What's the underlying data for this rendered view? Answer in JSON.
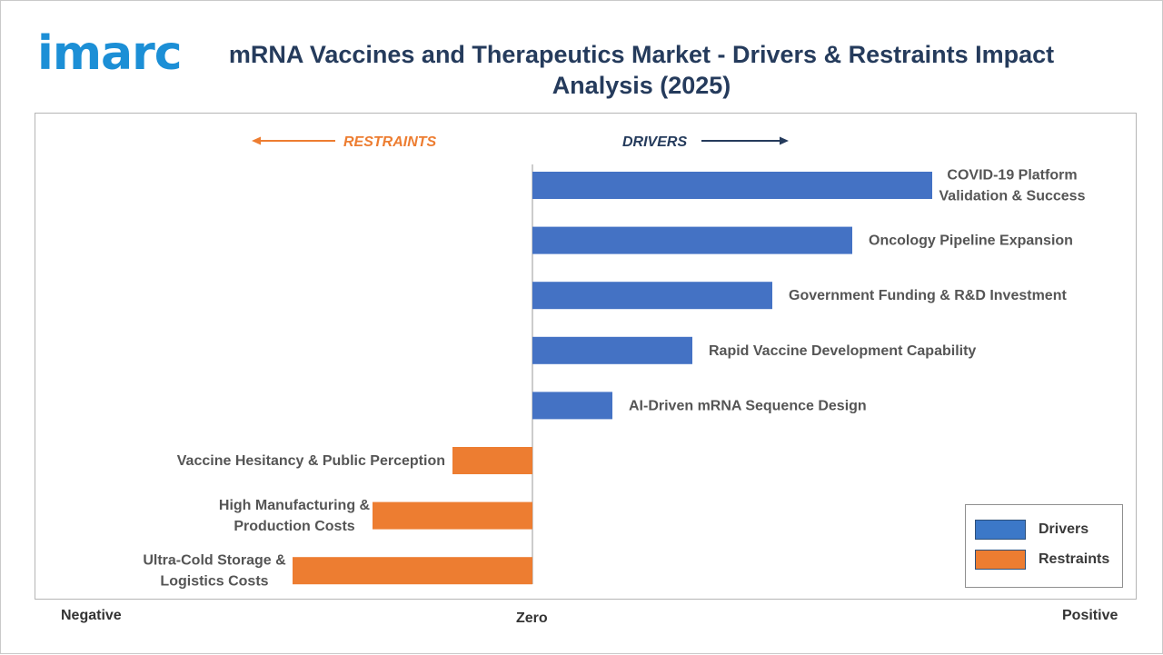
{
  "brand": {
    "logo_text": "imarc",
    "color": "#1c8fd6"
  },
  "title": "mRNA Vaccines and Therapeutics Market - Drivers & Restraints Impact Analysis (2025)",
  "chart_data": {
    "type": "bar",
    "orientation": "horizontal",
    "categories": [
      "COVID-19 Platform Validation & Success",
      "Oncology Pipeline Expansion",
      "Government Funding & R&D Investment",
      "Rapid Vaccine Development Capability",
      "AI-Driven mRNA Sequence Design",
      "Vaccine Hesitancy & Public Perception",
      "High Manufacturing & Production Costs",
      "Ultra-Cold Storage & Logistics Costs"
    ],
    "label_lines": [
      [
        "COVID-19 Platform",
        "Validation & Success"
      ],
      [
        "Oncology Pipeline Expansion"
      ],
      [
        "Government Funding & R&D Investment"
      ],
      [
        "Rapid Vaccine Development Capability"
      ],
      [
        "AI-Driven mRNA Sequence Design"
      ],
      [
        "Vaccine Hesitancy & Public Perception"
      ],
      [
        "High Manufacturing &",
        "Production Costs"
      ],
      [
        "Ultra-Cold Storage &",
        "Logistics Costs"
      ]
    ],
    "values": [
      5,
      4,
      3,
      2,
      1,
      -1,
      -2,
      -3
    ],
    "series": [
      {
        "name": "Drivers",
        "color": "#4472c4"
      },
      {
        "name": "Restraints",
        "color": "#ed7d31"
      }
    ],
    "xlim": [
      -6.2,
      7
    ],
    "xlabels": {
      "negative": "Negative",
      "zero": "Zero",
      "positive": "Positive"
    },
    "direction_labels": {
      "restraints": "RESTRAINTS",
      "drivers": "DRIVERS"
    },
    "direction_colors": {
      "restraints": "#ed7d31",
      "drivers": "#253b5c"
    },
    "legend": {
      "position": "bottom-right",
      "drivers_color": "#3c78c8",
      "restraints_color": "#ed7d31"
    },
    "grid": false
  }
}
